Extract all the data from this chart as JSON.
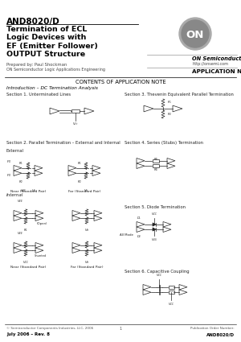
{
  "title_part": "AND8020/D",
  "title_main": "Termination of ECL\nLogic Devices with\nEF (Emitter Follower)\nOUTPUT Structure",
  "prepared_by": "Prepared by: Paul Shockman",
  "dept": "ON Semiconductor Logic Applications Engineering",
  "company": "ON Semiconductor®",
  "website": "http://onsemi.com",
  "app_note": "APPLICATION NOTE",
  "contents_title": "CONTENTS OF APPLICATION NOTE",
  "intro_title": "Introduction – DC Termination Analysis",
  "sec1": "Section 1. Unterminated Lines",
  "sec2": "Section 2. Parallel Termination – External and Internal",
  "sec2b": "External",
  "sec3": "Section 3. Thevenin Equivalent Parallel Termination",
  "sec4": "Section 4. Series (Stubs) Termination",
  "sec5": "Section 5. Diode Termination",
  "sec6": "Section 6. Capacitive Coupling",
  "internal_label": "Internal",
  "near_label": "Near (Standard Pair)",
  "far_label": "Far (Standard Pair)",
  "footer_copy": "© Semiconductor Components Industries, LLC, 2006",
  "footer_page": "1",
  "footer_date": "July 2006 – Rev. 8",
  "footer_pub": "Publication Order Number:",
  "footer_pn": "AND8020/D",
  "bg_color": "#ffffff",
  "text_color": "#000000",
  "gray1": "#aaaaaa",
  "gray2": "#888888",
  "dark": "#222222"
}
